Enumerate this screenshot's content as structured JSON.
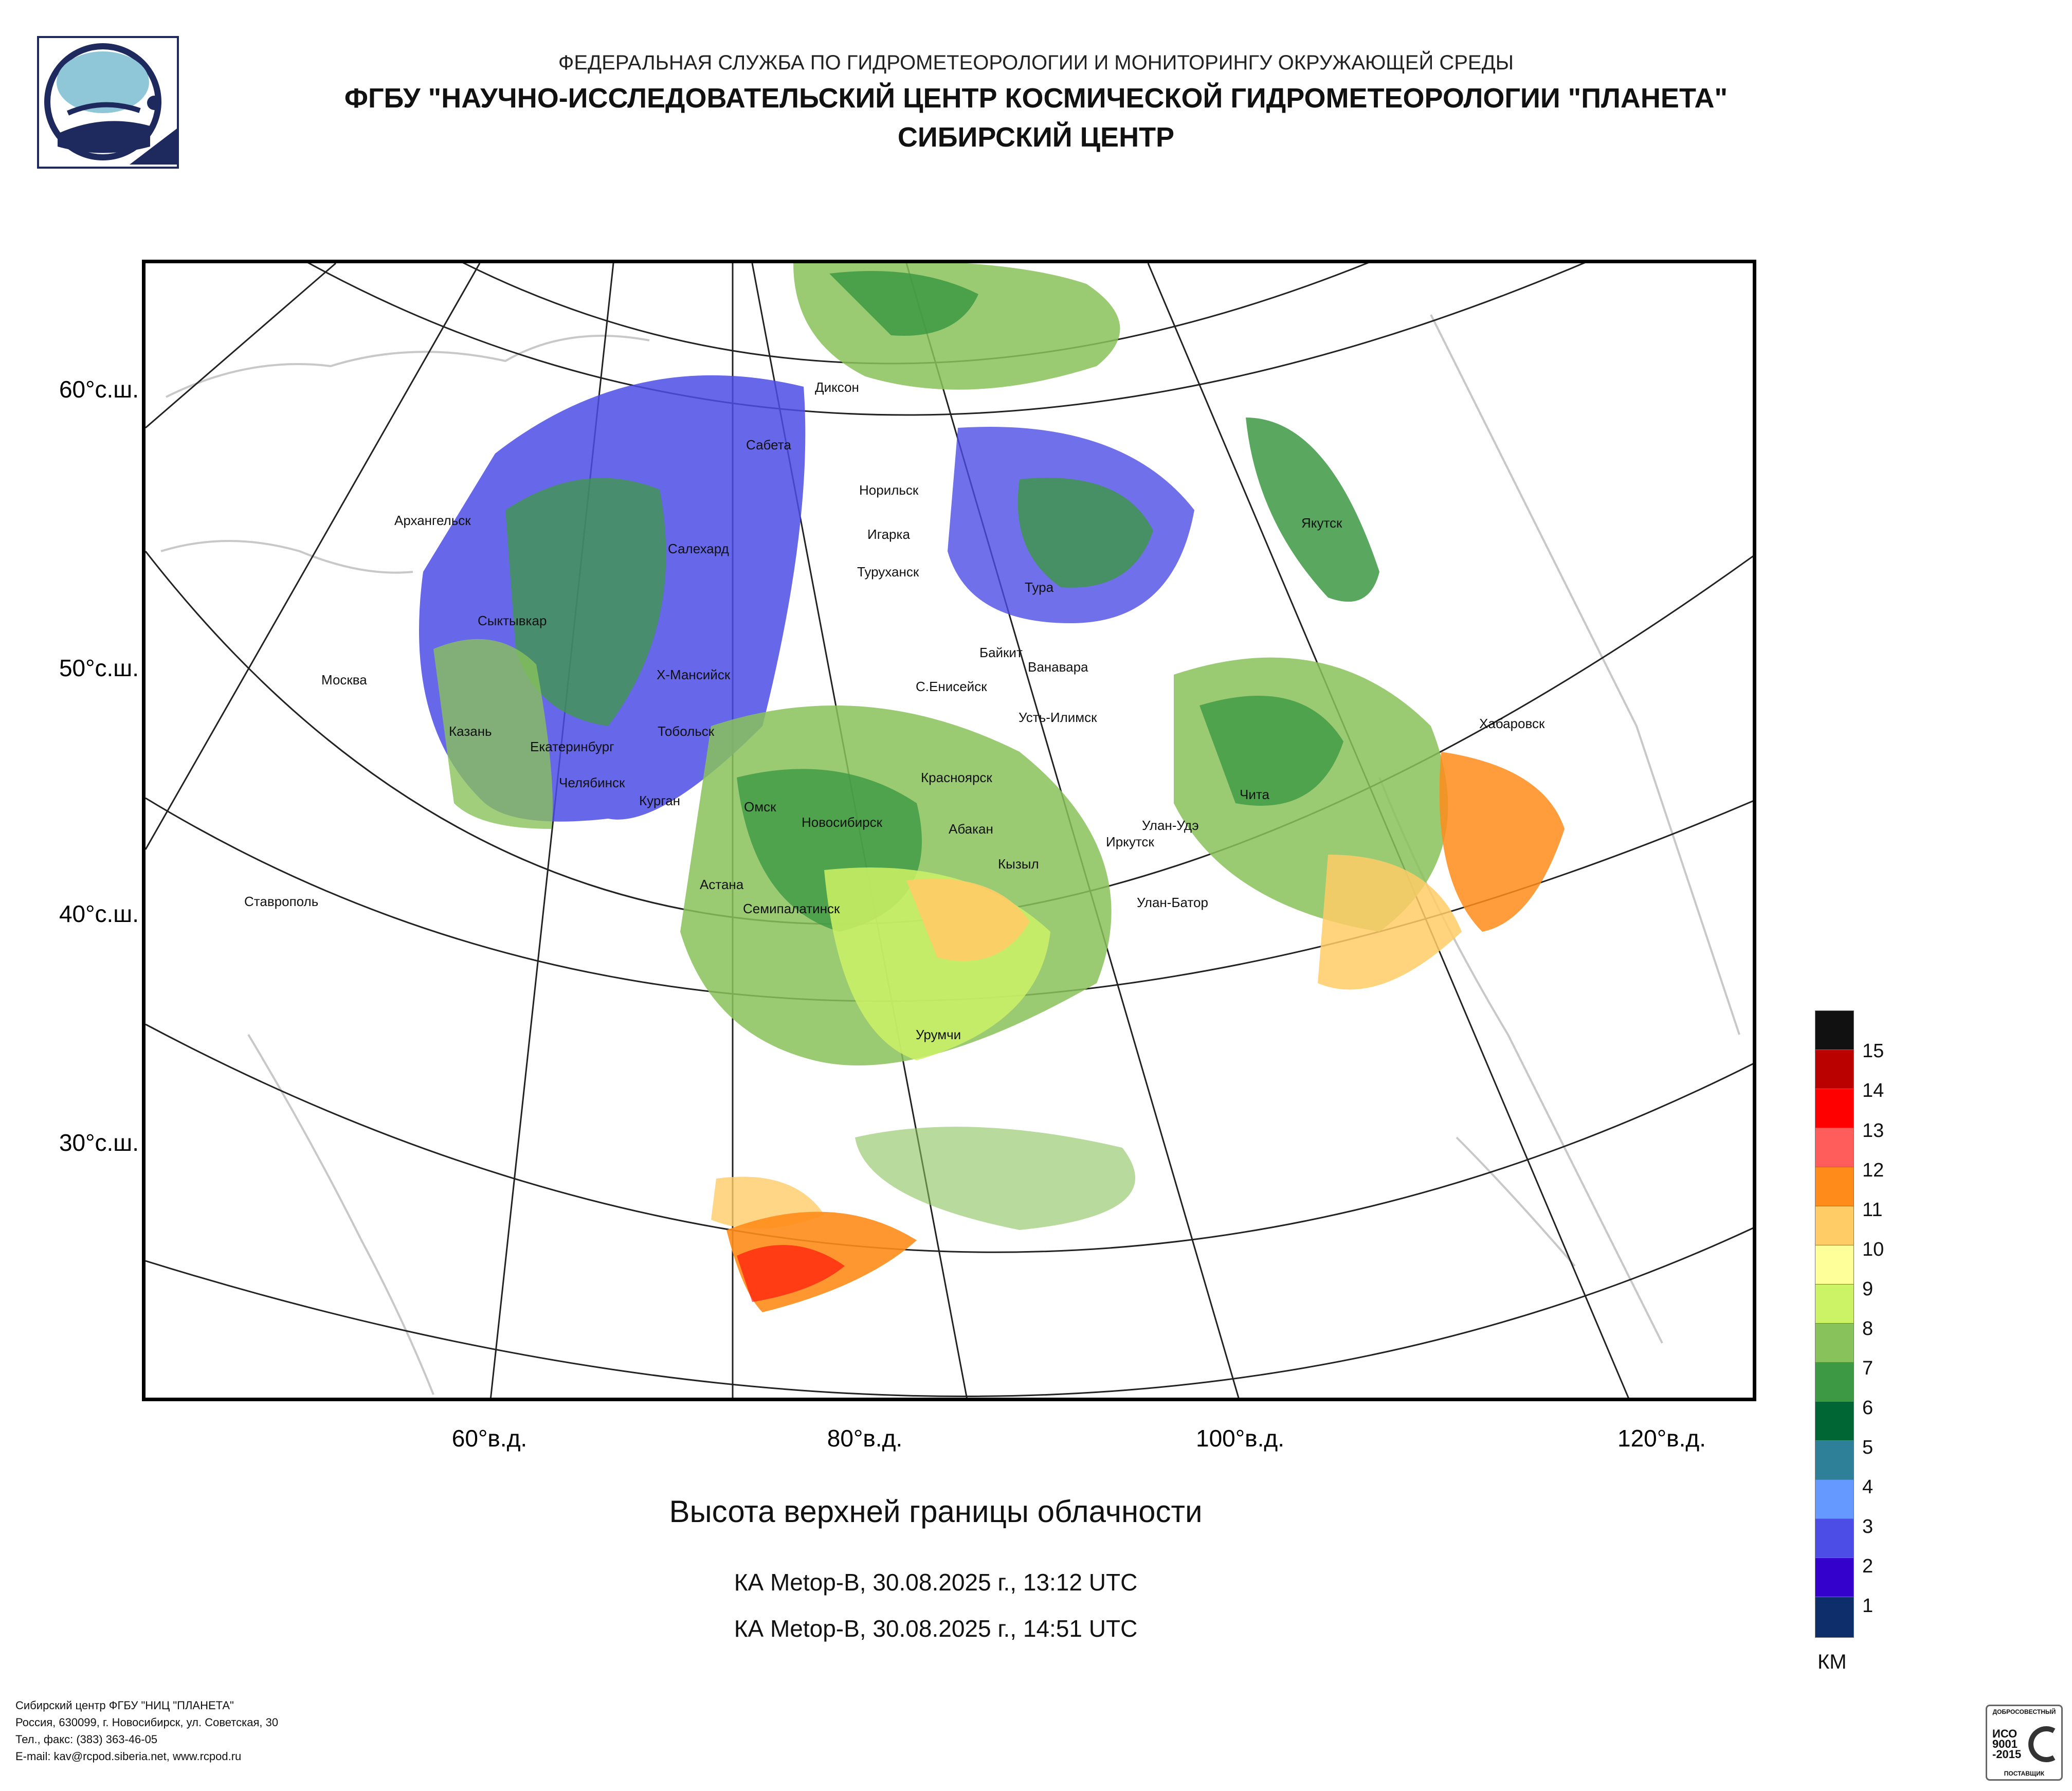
{
  "header": {
    "org": "ФЕДЕРАЛЬНАЯ СЛУЖБА ПО ГИДРОМЕТЕОРОЛОГИИ И МОНИТОРИНГУ ОКРУЖАЮЩЕЙ СРЕДЫ",
    "title": "ФГБУ \"НАУЧНО-ИССЛЕДОВАТЕЛЬСКИЙ ЦЕНТР КОСМИЧЕСКОЙ ГИДРОМЕТЕОРОЛОГИИ \"ПЛАНЕТА\"",
    "subtitle": "СИБИРСКИЙ ЦЕНТР"
  },
  "map": {
    "lat_labels": [
      "60°с.ш.",
      "50°с.ш.",
      "40°с.ш.",
      "30°с.ш."
    ],
    "lon_labels": [
      "60°в.д.",
      "80°в.д.",
      "100°в.д.",
      "120°в.д."
    ],
    "cities": [
      "Диксон",
      "Сабета",
      "Норильск",
      "Архангельск",
      "Игарка",
      "Салехард",
      "Туруханск",
      "Тура",
      "Якутск",
      "Сыктывкар",
      "Байкит",
      "Ванавара",
      "Москва",
      "Х-Мансийск",
      "С.Енисейск",
      "Казань",
      "Усть-Илимск",
      "Хабаровск",
      "Тобольск",
      "Екатеринбург",
      "Красноярск",
      "Челябинск",
      "Курган",
      "Чита",
      "Омск",
      "Новосибирск",
      "Улан-Удэ",
      "Абакан",
      "Иркутск",
      "Кызыл",
      "Астана",
      "Ставрополь",
      "Улан-Батор",
      "Семипалатинск",
      "Урумчи"
    ]
  },
  "caption": {
    "title": "Высота верхней границы облачности",
    "pass1": "КА Metop-B, 30.08.2025 г., 13:12 UTC",
    "pass2": "КА Metop-B, 30.08.2025 г., 14:51 UTC"
  },
  "legend": {
    "unit": "КМ",
    "levels": [
      "1",
      "2",
      "3",
      "4",
      "5",
      "6",
      "7",
      "8",
      "9",
      "10",
      "11",
      "12",
      "13",
      "14",
      "15"
    ],
    "colors": [
      "#0d2d6b",
      "#3300cc",
      "#4c4ce6",
      "#6699ff",
      "#2e8099",
      "#006633",
      "#3d9943",
      "#88c25a",
      "#ccf266",
      "#ffff99",
      "#ffcc66",
      "#ff8c1a",
      "#ff5c5c",
      "#ff0000",
      "#bb0000",
      "#111111"
    ]
  },
  "footer": {
    "line1": "Сибирский центр ФГБУ \"НИЦ \"ПЛАНЕТА\"",
    "line2": "Россия, 630099, г. Новосибирск, ул. Советская, 30",
    "line3": "Тел., факс: (383) 363-46-05",
    "line4": "E-mail: kav@rcpod.siberia.net, www.rcpod.ru"
  },
  "badge": {
    "top": "ДОБРОСОВЕСТНЫЙ",
    "mid1": "ИСО",
    "mid2": "9001",
    "mid3": "-2015",
    "bottom": "ПОСТАВЩИК"
  }
}
